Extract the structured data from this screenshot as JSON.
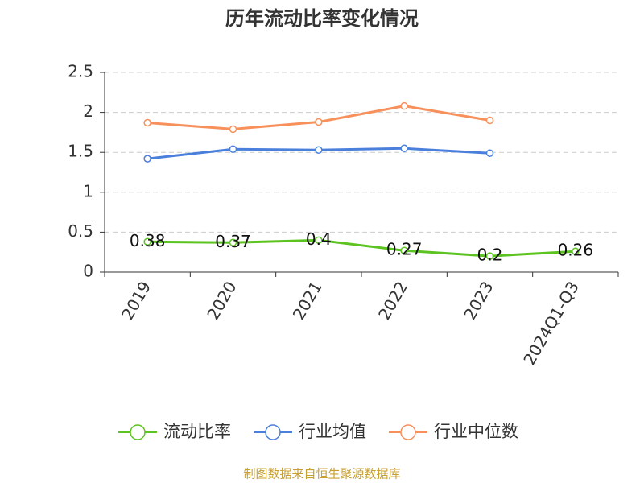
{
  "chart_data": {
    "type": "line",
    "title": "历年流动比率变化情况",
    "categories": [
      "2019",
      "2020",
      "2021",
      "2022",
      "2023",
      "2024Q1-Q3"
    ],
    "series": [
      {
        "name": "流动比率",
        "color": "#5cc320",
        "values": [
          0.38,
          0.37,
          0.4,
          0.27,
          0.2,
          0.26
        ],
        "show_labels": true
      },
      {
        "name": "行业均值",
        "color": "#4a7fdc",
        "values": [
          1.42,
          1.54,
          1.53,
          1.55,
          1.49,
          null
        ]
      },
      {
        "name": "行业中位数",
        "color": "#f8905c",
        "values": [
          1.87,
          1.79,
          1.88,
          2.08,
          1.9,
          null
        ]
      }
    ],
    "ylim": [
      0,
      2.5
    ],
    "yticks": [
      0,
      0.5,
      1,
      1.5,
      2,
      2.5
    ],
    "grid": true,
    "legend": "bottom",
    "source": "制图数据来自恒生聚源数据库"
  }
}
